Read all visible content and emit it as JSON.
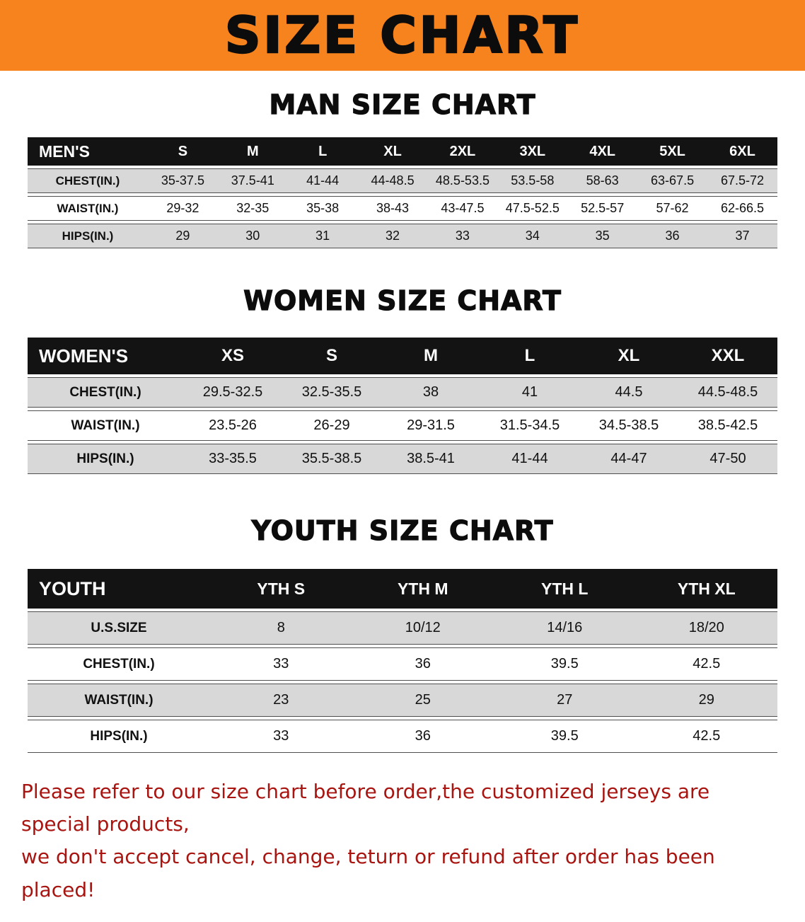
{
  "colors": {
    "banner-bg": "#f6831d",
    "header-bar": "#131313",
    "stripe": "#d8d8d8",
    "note-red": "#a81410"
  },
  "banner": {
    "title": "SIZE CHART"
  },
  "sections": [
    {
      "id": "men",
      "heading": "MAN SIZE CHART",
      "table": {
        "header": [
          "MEN'S",
          "S",
          "M",
          "L",
          "XL",
          "2XL",
          "3XL",
          "4XL",
          "5XL",
          "6XL"
        ],
        "rows": [
          {
            "label": "CHEST(IN.)",
            "values": [
              "35-37.5",
              "37.5-41",
              "41-44",
              "44-48.5",
              "48.5-53.5",
              "53.5-58",
              "58-63",
              "63-67.5",
              "67.5-72"
            ]
          },
          {
            "label": "WAIST(IN.)",
            "values": [
              "29-32",
              "32-35",
              "35-38",
              "38-43",
              "43-47.5",
              "47.5-52.5",
              "52.5-57",
              "57-62",
              "62-66.5"
            ]
          },
          {
            "label": "HIPS(IN.)",
            "values": [
              "29",
              "30",
              "31",
              "32",
              "33",
              "34",
              "35",
              "36",
              "37"
            ]
          }
        ]
      }
    },
    {
      "id": "women",
      "heading": "WOMEN SIZE CHART",
      "table": {
        "header": [
          "WOMEN'S",
          "XS",
          "S",
          "M",
          "L",
          "XL",
          "XXL"
        ],
        "rows": [
          {
            "label": "CHEST(IN.)",
            "values": [
              "29.5-32.5",
              "32.5-35.5",
              "38",
              "41",
              "44.5",
              "44.5-48.5"
            ]
          },
          {
            "label": "WAIST(IN.)",
            "values": [
              "23.5-26",
              "26-29",
              "29-31.5",
              "31.5-34.5",
              "34.5-38.5",
              "38.5-42.5"
            ]
          },
          {
            "label": "HIPS(IN.)",
            "values": [
              "33-35.5",
              "35.5-38.5",
              "38.5-41",
              "41-44",
              "44-47",
              "47-50"
            ]
          }
        ]
      }
    },
    {
      "id": "youth",
      "heading": "YOUTH SIZE CHART",
      "table": {
        "header": [
          "YOUTH",
          "YTH S",
          "YTH M",
          "YTH L",
          "YTH XL"
        ],
        "rows": [
          {
            "label": "U.S.SIZE",
            "values": [
              "8",
              "10/12",
              "14/16",
              "18/20"
            ]
          },
          {
            "label": "CHEST(IN.)",
            "values": [
              "33",
              "36",
              "39.5",
              "42.5"
            ]
          },
          {
            "label": "WAIST(IN.)",
            "values": [
              "23",
              "25",
              "27",
              "29"
            ]
          },
          {
            "label": "HIPS(IN.)",
            "values": [
              "33",
              "36",
              "39.5",
              "42.5"
            ]
          }
        ]
      }
    }
  ],
  "footer_note": {
    "line1": "Please refer to our size chart before order,the customized jerseys are special products,",
    "line2": "we don't accept cancel, change, teturn or refund after order has been placed!"
  }
}
